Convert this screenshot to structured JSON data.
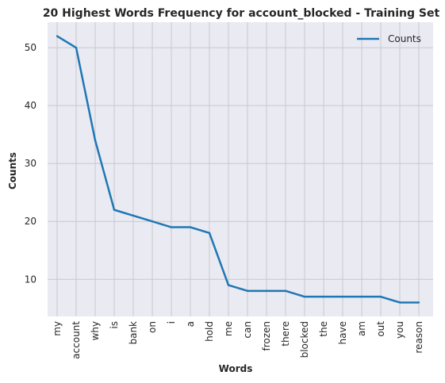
{
  "chart_data": {
    "type": "line",
    "title": "20 Highest Words Frequency for account_blocked - Training Set",
    "xlabel": "Words",
    "ylabel": "Counts",
    "categories": [
      "my",
      "account",
      "why",
      "is",
      "bank",
      "on",
      "i",
      "a",
      "hold",
      "me",
      "can",
      "frozen",
      "there",
      "blocked",
      "the",
      "have",
      "am",
      "out",
      "you",
      "reason"
    ],
    "series": [
      {
        "name": "Counts",
        "values": [
          52,
          50,
          34,
          22,
          21,
          20,
          19,
          19,
          18,
          9,
          8,
          8,
          8,
          7,
          7,
          7,
          7,
          7,
          6,
          6
        ]
      }
    ],
    "yticks": [
      10,
      20,
      30,
      40,
      50
    ],
    "ylim": [
      3.6,
      54.4
    ],
    "grid": true,
    "legend": "top-right",
    "colors": {
      "line": "#1f77b4",
      "background": "#eaeaf2",
      "grid": "#c8c8cf"
    }
  }
}
